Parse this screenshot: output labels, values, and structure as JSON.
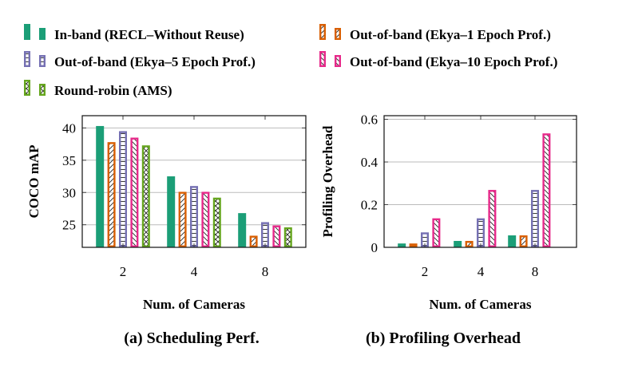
{
  "legend": [
    {
      "label": "In-band (RECL–Without Reuse)",
      "color": "#1b9e77",
      "pattern": "solid"
    },
    {
      "label": "Out-of-band (Ekya–1 Epoch Prof.)",
      "color": "#d95f02",
      "pattern": "north-east-lines"
    },
    {
      "label": "Out-of-band (Ekya–5 Epoch Prof.)",
      "color": "#7570b3",
      "pattern": "horizontal-lines"
    },
    {
      "label": "Out-of-band (Ekya–10 Epoch Prof.)",
      "color": "#e7298a",
      "pattern": "north-west-lines"
    },
    {
      "label": "Round-robin (AMS)",
      "color": "#66a61e",
      "pattern": "crosshatch"
    }
  ],
  "chart_data": [
    {
      "type": "bar",
      "caption": "(a) Scheduling Perf.",
      "xlabel": "Num. of Cameras",
      "ylabel": "COCO mAP",
      "categories": [
        "2",
        "4",
        "8"
      ],
      "yticks": [
        25,
        30,
        35,
        40
      ],
      "ylim": [
        21.5,
        41.9
      ],
      "grid": "horizontal",
      "series": [
        {
          "name": "In-band (RECL–Without Reuse)",
          "values": [
            40.3,
            32.5,
            26.8
          ]
        },
        {
          "name": "Out-of-band (Ekya–1 Epoch Prof.)",
          "values": [
            37.8,
            30.1,
            23.3
          ]
        },
        {
          "name": "Out-of-band (Ekya–5 Epoch Prof.)",
          "values": [
            39.5,
            31.0,
            25.4
          ]
        },
        {
          "name": "Out-of-band (Ekya–10 Epoch Prof.)",
          "values": [
            38.5,
            30.1,
            24.9
          ]
        },
        {
          "name": "Round-robin (AMS)",
          "values": [
            37.3,
            29.2,
            24.6
          ]
        }
      ]
    },
    {
      "type": "bar",
      "caption": "(b) Profiling Overhead",
      "xlabel": "Num. of Cameras",
      "ylabel": "Profiling Overhead",
      "categories": [
        "2",
        "4",
        "8"
      ],
      "yticks": [
        0,
        0.2,
        0.4,
        0.6
      ],
      "ytick_labels": [
        "0",
        "0.2",
        "0.4",
        "0.6"
      ],
      "ylim": [
        0,
        0.617
      ],
      "grid": "horizontal",
      "series": [
        {
          "name": "In-band (RECL–Without Reuse)",
          "values": [
            0.018,
            0.03,
            0.056
          ]
        },
        {
          "name": "Out-of-band (Ekya–1 Epoch Prof.)",
          "values": [
            0.018,
            0.03,
            0.056
          ]
        },
        {
          "name": "Out-of-band (Ekya–5 Epoch Prof.)",
          "values": [
            0.07,
            0.136,
            0.269
          ]
        },
        {
          "name": "Out-of-band (Ekya–10 Epoch Prof.)",
          "values": [
            0.136,
            0.269,
            0.534
          ]
        },
        {
          "name": "Round-robin (AMS)",
          "values": [
            0.003,
            0.003,
            0.003
          ]
        }
      ]
    }
  ]
}
